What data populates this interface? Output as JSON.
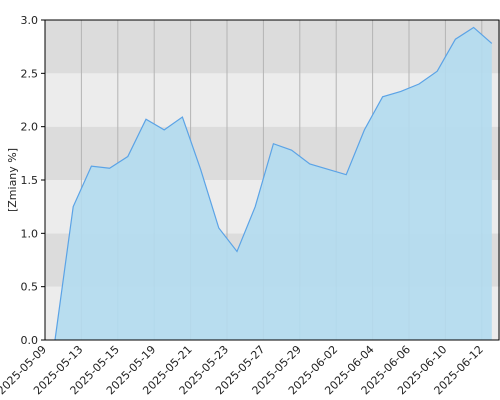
{
  "chart_data": {
    "type": "area",
    "y_label": "[Zmiany %]",
    "categories": [
      "2025-05-09",
      null,
      "2025-05-13",
      null,
      "2025-05-15",
      null,
      "2025-05-19",
      null,
      "2025-05-21",
      null,
      "2025-05-23",
      null,
      "2025-05-27",
      null,
      "2025-05-29",
      null,
      "2025-06-02",
      null,
      "2025-06-04",
      null,
      "2025-06-06",
      null,
      "2025-06-10",
      null,
      "2025-06-12"
    ],
    "values": [
      0.0,
      1.25,
      1.63,
      1.61,
      1.72,
      2.07,
      1.97,
      2.09,
      1.6,
      1.05,
      0.83,
      1.25,
      1.84,
      1.78,
      1.65,
      1.6,
      1.55,
      1.97,
      2.28,
      2.33,
      2.4,
      2.52,
      2.82,
      2.93,
      2.78
    ],
    "color": "#5ba3e6",
    "fill": "#b3dbef",
    "ylim": [
      0,
      3
    ],
    "yticks": [
      {
        "value": 0,
        "label": "0.0"
      },
      {
        "value": 0.5,
        "label": "0.5"
      },
      {
        "value": 1,
        "label": "1.0"
      },
      {
        "value": 1.5,
        "label": "1.5"
      },
      {
        "value": 2,
        "label": "2.0"
      },
      {
        "value": 2.5,
        "label": "2.5"
      },
      {
        "value": 3,
        "label": "3.0"
      }
    ],
    "grid": true
  }
}
